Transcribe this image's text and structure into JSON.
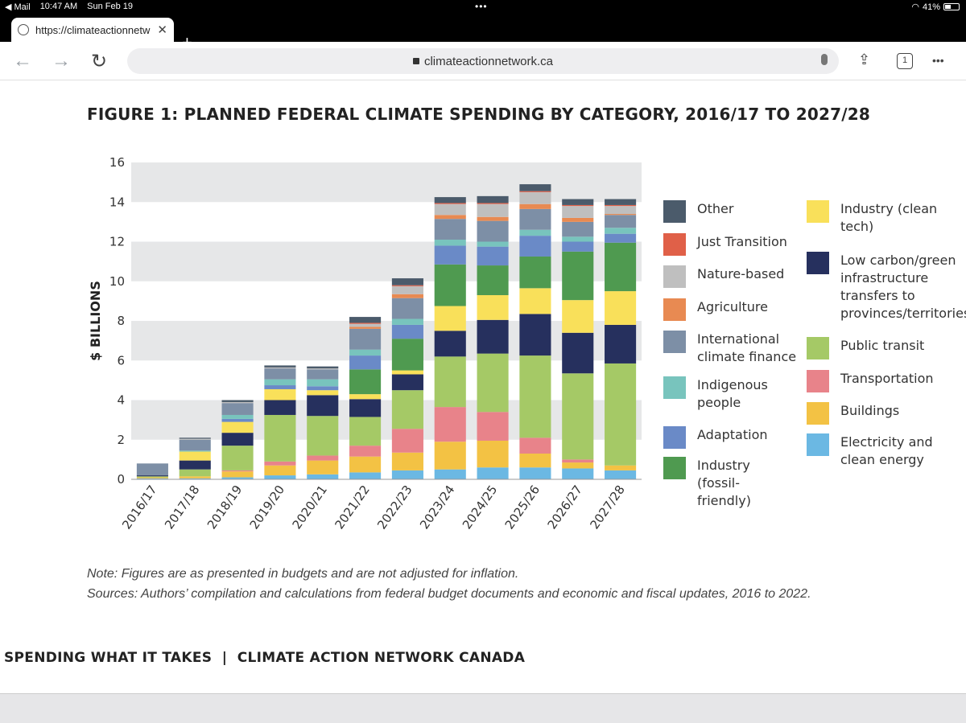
{
  "status": {
    "back_app": "Mail",
    "time": "10:47 AM",
    "date": "Sun Feb 19",
    "dots": "•••",
    "battery": "41%"
  },
  "browser": {
    "tab_title": "https://climateactionnetw",
    "new_tab": "+",
    "address": "climateactionnetwork.ca",
    "tab_count": "1",
    "more": "•••"
  },
  "page": {
    "figure_title": "FIGURE 1: PLANNED FEDERAL CLIMATE SPENDING BY CATEGORY, 2016/17 TO 2027/28",
    "note": "Note: Figures are as presented in budgets and are not adjusted for inflation.",
    "sources": "Sources: Authors’ compilation and calculations from federal budget documents and economic and fiscal updates, 2016 to 2022.",
    "footer": "SPENDING WHAT IT TAKES  |  CLIMATE ACTION NETWORK CANADA"
  },
  "colors": {
    "Electricity and clean energy": "#6bb8e3",
    "Buildings": "#f3c244",
    "Transportation": "#e8838a",
    "Public transit": "#a5c966",
    "Low carbon/green infrastructure transfers to provinces/territories": "#26305e",
    "Industry (clean tech)": "#f9e05a",
    "Industry (fossil-friendly)": "#4f9a50",
    "Adaptation": "#6a8ac7",
    "Indigenous people": "#78c4bd",
    "International climate finance": "#7d8fa6",
    "Agriculture": "#e88a52",
    "Nature-based": "#bfbfbf",
    "Just Transition": "#e06048",
    "Other": "#4b5b6b"
  },
  "chart_data": {
    "type": "bar",
    "stacked": true,
    "ylabel": "$ BILLIONS",
    "ylim": [
      0,
      16
    ],
    "yticks": [
      "0",
      "2",
      "4",
      "6",
      "8",
      "10",
      "12",
      "14",
      "16"
    ],
    "grid": "alternating bands",
    "legend_position": "right",
    "categories": [
      "2016/17",
      "2017/18",
      "2018/19",
      "2019/20",
      "2020/21",
      "2021/22",
      "2022/23",
      "2023/24",
      "2024/25",
      "2025/26",
      "2026/27",
      "2027/28"
    ],
    "series": [
      {
        "name": "Electricity and clean energy",
        "values": [
          0.05,
          0.05,
          0.1,
          0.2,
          0.25,
          0.35,
          0.45,
          0.5,
          0.6,
          0.6,
          0.55,
          0.45
        ]
      },
      {
        "name": "Buildings",
        "values": [
          0.05,
          0.1,
          0.3,
          0.5,
          0.7,
          0.8,
          0.9,
          1.4,
          1.35,
          0.7,
          0.3,
          0.25
        ]
      },
      {
        "name": "Transportation",
        "values": [
          0,
          0,
          0.05,
          0.2,
          0.25,
          0.55,
          1.2,
          1.75,
          1.45,
          0.8,
          0.15,
          0
        ]
      },
      {
        "name": "Public transit",
        "values": [
          0.05,
          0.35,
          1.25,
          2.35,
          2.0,
          1.45,
          1.95,
          2.55,
          2.95,
          4.15,
          4.35,
          5.15
        ]
      },
      {
        "name": "Low carbon/green infrastructure transfers to provinces/territories",
        "values": [
          0.05,
          0.45,
          0.65,
          0.75,
          1.05,
          0.9,
          0.8,
          1.3,
          1.7,
          2.1,
          2.05,
          1.95
        ]
      },
      {
        "name": "Industry (clean tech)",
        "values": [
          0,
          0.45,
          0.55,
          0.55,
          0.25,
          0.25,
          0.2,
          1.25,
          1.25,
          1.3,
          1.65,
          1.7
        ]
      },
      {
        "name": "Industry (fossil-friendly)",
        "values": [
          0,
          0,
          0,
          0,
          0,
          1.25,
          1.6,
          2.1,
          1.5,
          1.6,
          2.45,
          2.45
        ]
      },
      {
        "name": "Adaptation",
        "values": [
          0,
          0,
          0.15,
          0.2,
          0.2,
          0.7,
          0.7,
          0.95,
          0.95,
          1.05,
          0.5,
          0.45
        ]
      },
      {
        "name": "Indigenous people",
        "values": [
          0,
          0.05,
          0.2,
          0.3,
          0.35,
          0.3,
          0.3,
          0.3,
          0.25,
          0.3,
          0.25,
          0.3
        ]
      },
      {
        "name": "International climate finance",
        "values": [
          0.6,
          0.55,
          0.6,
          0.55,
          0.5,
          1.05,
          1.05,
          1.05,
          1.05,
          1.05,
          0.75,
          0.65
        ]
      },
      {
        "name": "Agriculture",
        "values": [
          0,
          0,
          0,
          0,
          0,
          0.1,
          0.2,
          0.2,
          0.2,
          0.25,
          0.2,
          0.05
        ]
      },
      {
        "name": "Nature-based",
        "values": [
          0,
          0.05,
          0.05,
          0.05,
          0.05,
          0.15,
          0.4,
          0.55,
          0.65,
          0.6,
          0.6,
          0.4
        ]
      },
      {
        "name": "Just Transition",
        "values": [
          0,
          0,
          0,
          0,
          0,
          0.05,
          0.05,
          0.05,
          0.05,
          0.05,
          0.05,
          0.05
        ]
      },
      {
        "name": "Other",
        "values": [
          0,
          0.05,
          0.1,
          0.1,
          0.1,
          0.3,
          0.35,
          0.3,
          0.35,
          0.35,
          0.3,
          0.3
        ]
      }
    ]
  },
  "legend_left": [
    "Other",
    "Just Transition",
    "Nature-based",
    "Agriculture",
    "International climate finance",
    "Indigenous people",
    "Adaptation",
    "Industry (fossil-friendly)"
  ],
  "legend_right": [
    "Industry (clean tech)",
    "Low carbon/green infrastructure transfers to provinces/territories",
    "Public transit",
    "Transportation",
    "Buildings",
    "Electricity and clean energy"
  ]
}
